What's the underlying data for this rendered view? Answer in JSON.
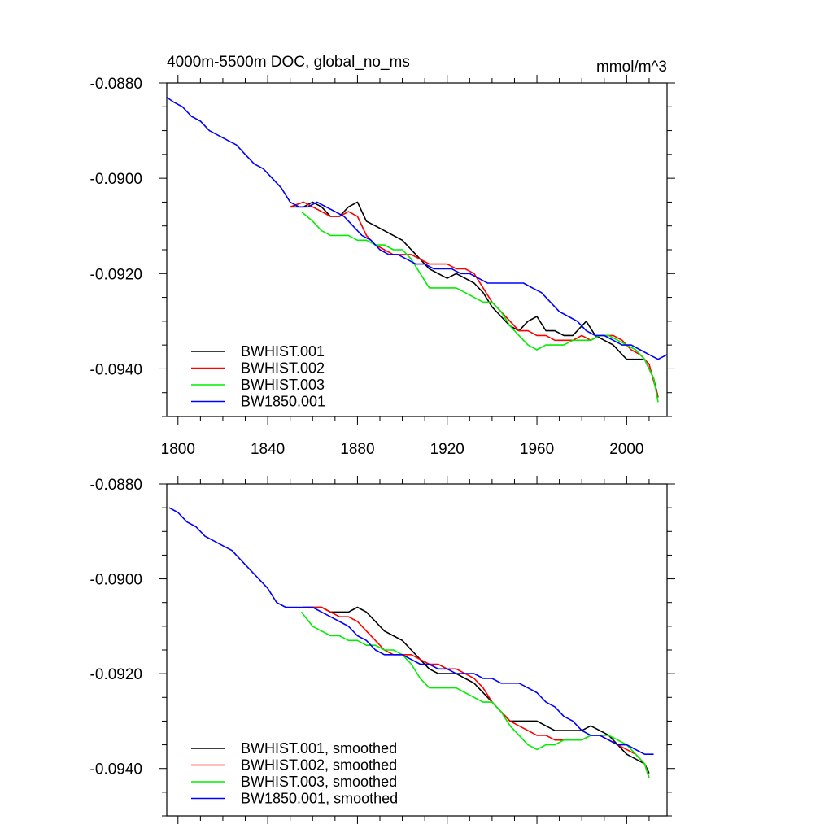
{
  "chart_data": [
    {
      "type": "line",
      "title": "4000m-5500m DOC, global_no_ms",
      "units": "mmol/m^3",
      "xlim": [
        1795,
        2018
      ],
      "ylim": [
        -0.095,
        -0.088
      ],
      "xticks": [
        1800,
        1840,
        1880,
        1920,
        1960,
        2000
      ],
      "xtick_labels": [
        "1800",
        "1840",
        "1880",
        "1920",
        "1960",
        "2000"
      ],
      "yticks": [
        -0.088,
        -0.09,
        -0.092,
        -0.094
      ],
      "ytick_labels": [
        "-0.0880",
        "-0.0900",
        "-0.0920",
        "-0.0940"
      ],
      "legend_position": "bottom-left",
      "series": [
        {
          "name": "BWHIST.001",
          "color": "#000000",
          "x": [
            1850,
            1856,
            1860,
            1864,
            1868,
            1872,
            1876,
            1880,
            1884,
            1888,
            1892,
            1896,
            1900,
            1904,
            1908,
            1912,
            1916,
            1920,
            1924,
            1928,
            1932,
            1936,
            1940,
            1944,
            1948,
            1952,
            1956,
            1960,
            1964,
            1968,
            1972,
            1976,
            1980,
            1982,
            1986,
            1990,
            1994,
            1998,
            2000,
            2004,
            2008,
            2012,
            2014
          ],
          "y": [
            -0.0906,
            -0.0906,
            -0.0905,
            -0.0906,
            -0.0908,
            -0.0908,
            -0.0906,
            -0.0905,
            -0.0909,
            -0.091,
            -0.0911,
            -0.0912,
            -0.0913,
            -0.0915,
            -0.0917,
            -0.0919,
            -0.092,
            -0.0921,
            -0.092,
            -0.0921,
            -0.0922,
            -0.0924,
            -0.0927,
            -0.0929,
            -0.0931,
            -0.0932,
            -0.093,
            -0.0929,
            -0.0932,
            -0.0932,
            -0.0933,
            -0.0933,
            -0.0931,
            -0.093,
            -0.0933,
            -0.0934,
            -0.0935,
            -0.0937,
            -0.0938,
            -0.0938,
            -0.0938,
            -0.0942,
            -0.0946
          ]
        },
        {
          "name": "BWHIST.002",
          "color": "#ff0000",
          "x": [
            1850,
            1856,
            1860,
            1864,
            1868,
            1872,
            1876,
            1880,
            1884,
            1888,
            1892,
            1896,
            1900,
            1904,
            1908,
            1912,
            1916,
            1920,
            1924,
            1928,
            1932,
            1936,
            1940,
            1944,
            1948,
            1952,
            1956,
            1960,
            1964,
            1968,
            1972,
            1976,
            1980,
            1984,
            1988,
            1990,
            1994,
            1998,
            2002,
            2006,
            2010,
            2014
          ],
          "y": [
            -0.0906,
            -0.0905,
            -0.0906,
            -0.0907,
            -0.0908,
            -0.0908,
            -0.0907,
            -0.0908,
            -0.0912,
            -0.0914,
            -0.0915,
            -0.0916,
            -0.0916,
            -0.0916,
            -0.0917,
            -0.0918,
            -0.0918,
            -0.0918,
            -0.0919,
            -0.0919,
            -0.092,
            -0.0923,
            -0.0926,
            -0.0928,
            -0.093,
            -0.0932,
            -0.0932,
            -0.0933,
            -0.0933,
            -0.0934,
            -0.0934,
            -0.0934,
            -0.0933,
            -0.0934,
            -0.0933,
            -0.0933,
            -0.0933,
            -0.0934,
            -0.0936,
            -0.0937,
            -0.0939,
            -0.0946
          ]
        },
        {
          "name": "BWHIST.003",
          "color": "#00ee00",
          "x": [
            1855,
            1860,
            1864,
            1868,
            1872,
            1876,
            1880,
            1884,
            1888,
            1892,
            1896,
            1900,
            1904,
            1908,
            1912,
            1916,
            1920,
            1924,
            1928,
            1932,
            1936,
            1940,
            1944,
            1948,
            1952,
            1956,
            1960,
            1964,
            1968,
            1972,
            1976,
            1980,
            1984,
            1988,
            1992,
            1996,
            2000,
            2004,
            2008,
            2012,
            2014
          ],
          "y": [
            -0.0907,
            -0.0909,
            -0.0911,
            -0.0912,
            -0.0912,
            -0.0912,
            -0.0913,
            -0.0913,
            -0.0914,
            -0.0914,
            -0.0915,
            -0.0915,
            -0.0917,
            -0.092,
            -0.0923,
            -0.0923,
            -0.0923,
            -0.0923,
            -0.0924,
            -0.0925,
            -0.0926,
            -0.0926,
            -0.0928,
            -0.0931,
            -0.0933,
            -0.0935,
            -0.0936,
            -0.0935,
            -0.0935,
            -0.0935,
            -0.0934,
            -0.0934,
            -0.0934,
            -0.0933,
            -0.0933,
            -0.0934,
            -0.0935,
            -0.0936,
            -0.0938,
            -0.0942,
            -0.0947
          ]
        },
        {
          "name": "BW1850.001",
          "color": "#0000ff",
          "x": [
            1795,
            1798,
            1802,
            1806,
            1810,
            1814,
            1818,
            1822,
            1826,
            1830,
            1834,
            1838,
            1842,
            1846,
            1850,
            1854,
            1858,
            1862,
            1866,
            1870,
            1874,
            1878,
            1882,
            1886,
            1890,
            1894,
            1898,
            1902,
            1906,
            1910,
            1914,
            1918,
            1922,
            1926,
            1930,
            1934,
            1938,
            1942,
            1946,
            1950,
            1954,
            1958,
            1962,
            1966,
            1970,
            1974,
            1978,
            1982,
            1986,
            1990,
            1994,
            1998,
            2002,
            2006,
            2010,
            2014,
            2018
          ],
          "y": [
            -0.0883,
            -0.0884,
            -0.0885,
            -0.0887,
            -0.0888,
            -0.089,
            -0.0891,
            -0.0892,
            -0.0893,
            -0.0895,
            -0.0897,
            -0.0898,
            -0.09,
            -0.0902,
            -0.0905,
            -0.0906,
            -0.0906,
            -0.0905,
            -0.0906,
            -0.0907,
            -0.0908,
            -0.091,
            -0.0912,
            -0.0913,
            -0.0915,
            -0.0916,
            -0.0916,
            -0.0917,
            -0.0918,
            -0.0918,
            -0.0919,
            -0.0919,
            -0.0919,
            -0.092,
            -0.092,
            -0.0921,
            -0.0922,
            -0.0922,
            -0.0922,
            -0.0922,
            -0.0922,
            -0.0923,
            -0.0924,
            -0.0926,
            -0.0928,
            -0.0929,
            -0.093,
            -0.0932,
            -0.0933,
            -0.0933,
            -0.0934,
            -0.0935,
            -0.0935,
            -0.0936,
            -0.0937,
            -0.0938,
            -0.0937
          ]
        }
      ]
    },
    {
      "type": "line",
      "title": "",
      "xlim": [
        1795,
        2018
      ],
      "ylim": [
        -0.095,
        -0.088
      ],
      "xticks": [
        1800,
        1840,
        1880,
        1920,
        1960,
        2000
      ],
      "yticks": [
        -0.088,
        -0.09,
        -0.092,
        -0.094
      ],
      "ytick_labels": [
        "-0.0880",
        "-0.0900",
        "-0.0920",
        "-0.0940"
      ],
      "legend_position": "bottom-left",
      "series": [
        {
          "name": "BWHIST.001, smoothed",
          "color": "#000000",
          "x": [
            1856,
            1860,
            1864,
            1868,
            1872,
            1876,
            1880,
            1884,
            1888,
            1892,
            1896,
            1900,
            1904,
            1908,
            1912,
            1916,
            1920,
            1924,
            1928,
            1932,
            1936,
            1940,
            1944,
            1948,
            1952,
            1956,
            1960,
            1964,
            1968,
            1972,
            1976,
            1980,
            1984,
            1988,
            1992,
            1996,
            2000,
            2004,
            2008,
            2010
          ],
          "y": [
            -0.0906,
            -0.0906,
            -0.0906,
            -0.0907,
            -0.0907,
            -0.0907,
            -0.0906,
            -0.0907,
            -0.0909,
            -0.0911,
            -0.0912,
            -0.0913,
            -0.0915,
            -0.0917,
            -0.0919,
            -0.092,
            -0.092,
            -0.092,
            -0.0921,
            -0.0922,
            -0.0924,
            -0.0926,
            -0.0928,
            -0.093,
            -0.093,
            -0.093,
            -0.093,
            -0.0931,
            -0.0932,
            -0.0932,
            -0.0932,
            -0.0932,
            -0.0931,
            -0.0932,
            -0.0933,
            -0.0935,
            -0.0937,
            -0.0938,
            -0.0939,
            -0.0941
          ]
        },
        {
          "name": "BWHIST.002, smoothed",
          "color": "#ff0000",
          "x": [
            1856,
            1860,
            1864,
            1868,
            1872,
            1876,
            1880,
            1884,
            1888,
            1892,
            1896,
            1900,
            1904,
            1908,
            1912,
            1916,
            1920,
            1924,
            1928,
            1932,
            1936,
            1940,
            1944,
            1948,
            1952,
            1956,
            1960,
            1964,
            1968,
            1972,
            1976,
            1980,
            1984,
            1988,
            1992,
            1996,
            2000,
            2004,
            2008,
            2010
          ],
          "y": [
            -0.0906,
            -0.0906,
            -0.0906,
            -0.0907,
            -0.0908,
            -0.0908,
            -0.0909,
            -0.0911,
            -0.0913,
            -0.0915,
            -0.0916,
            -0.0916,
            -0.0916,
            -0.0917,
            -0.0918,
            -0.0918,
            -0.0919,
            -0.0919,
            -0.092,
            -0.0921,
            -0.0923,
            -0.0926,
            -0.0928,
            -0.093,
            -0.0931,
            -0.0932,
            -0.0933,
            -0.0933,
            -0.0934,
            -0.0934,
            -0.0934,
            -0.0934,
            -0.0933,
            -0.0933,
            -0.0934,
            -0.0935,
            -0.0936,
            -0.0937,
            -0.0939,
            -0.0942
          ]
        },
        {
          "name": "BWHIST.003, smoothed",
          "color": "#00ee00",
          "x": [
            1855,
            1860,
            1864,
            1868,
            1872,
            1876,
            1880,
            1884,
            1888,
            1892,
            1896,
            1900,
            1904,
            1908,
            1912,
            1916,
            1920,
            1924,
            1928,
            1932,
            1936,
            1940,
            1944,
            1948,
            1952,
            1956,
            1960,
            1964,
            1968,
            1972,
            1976,
            1980,
            1984,
            1988,
            1992,
            1996,
            2000,
            2004,
            2008,
            2010
          ],
          "y": [
            -0.0907,
            -0.091,
            -0.0911,
            -0.0912,
            -0.0912,
            -0.0913,
            -0.0913,
            -0.0914,
            -0.0914,
            -0.0915,
            -0.0915,
            -0.0916,
            -0.0918,
            -0.0921,
            -0.0923,
            -0.0923,
            -0.0923,
            -0.0923,
            -0.0924,
            -0.0925,
            -0.0926,
            -0.0926,
            -0.0928,
            -0.0931,
            -0.0933,
            -0.0935,
            -0.0936,
            -0.0935,
            -0.0935,
            -0.0934,
            -0.0934,
            -0.0934,
            -0.0933,
            -0.0933,
            -0.0933,
            -0.0934,
            -0.0935,
            -0.0937,
            -0.0939,
            -0.0942
          ]
        },
        {
          "name": "BW1850.001, smoothed",
          "color": "#0000ff",
          "x": [
            1796,
            1800,
            1804,
            1808,
            1812,
            1816,
            1820,
            1824,
            1828,
            1832,
            1836,
            1840,
            1844,
            1848,
            1852,
            1856,
            1860,
            1864,
            1868,
            1872,
            1876,
            1880,
            1884,
            1888,
            1892,
            1896,
            1900,
            1904,
            1908,
            1912,
            1916,
            1920,
            1924,
            1928,
            1932,
            1936,
            1940,
            1944,
            1948,
            1952,
            1956,
            1960,
            1964,
            1968,
            1972,
            1976,
            1980,
            1984,
            1988,
            1992,
            1996,
            2000,
            2004,
            2008,
            2012
          ],
          "y": [
            -0.0885,
            -0.0886,
            -0.0888,
            -0.0889,
            -0.0891,
            -0.0892,
            -0.0893,
            -0.0894,
            -0.0896,
            -0.0898,
            -0.09,
            -0.0902,
            -0.0905,
            -0.0906,
            -0.0906,
            -0.0906,
            -0.0906,
            -0.0907,
            -0.0908,
            -0.0909,
            -0.091,
            -0.0912,
            -0.0913,
            -0.0915,
            -0.0916,
            -0.0916,
            -0.0916,
            -0.0917,
            -0.0918,
            -0.0918,
            -0.0919,
            -0.0919,
            -0.092,
            -0.092,
            -0.092,
            -0.0921,
            -0.0921,
            -0.0922,
            -0.0922,
            -0.0922,
            -0.0923,
            -0.0924,
            -0.0926,
            -0.0927,
            -0.0929,
            -0.093,
            -0.0932,
            -0.0933,
            -0.0933,
            -0.0934,
            -0.0935,
            -0.0935,
            -0.0936,
            -0.0937,
            -0.0937
          ]
        }
      ]
    }
  ]
}
